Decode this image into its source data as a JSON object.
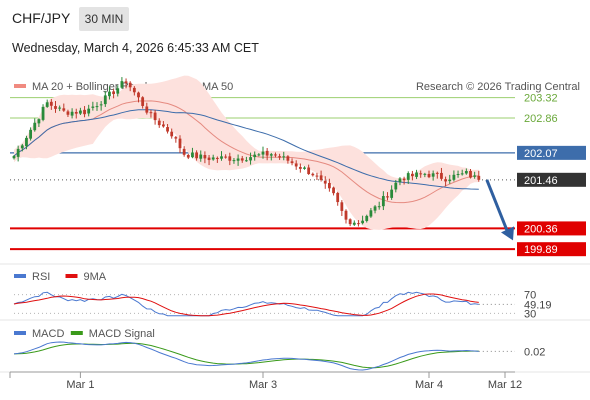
{
  "header": {
    "symbol": "CHF/JPY",
    "timeframe": "30 MIN",
    "datetime": "Wednesday, March 4, 2026 6:45:33 AM CET",
    "credit": "Research © 2026 Trading Central"
  },
  "legend_price": [
    {
      "label": "MA 20 + Bollinger Bands",
      "color": "#f08a80"
    },
    {
      "label": "MA 50",
      "color": "#3d6dab"
    }
  ],
  "legend_rsi": [
    {
      "label": "RSI",
      "color": "#4a78d0"
    },
    {
      "label": "9MA",
      "color": "#e01010"
    }
  ],
  "legend_macd": [
    {
      "label": "MACD",
      "color": "#4a78d0"
    },
    {
      "label": "MACD Signal",
      "color": "#3a9a1a"
    }
  ],
  "colors": {
    "up": "#2a8a3a",
    "down": "#c0392b",
    "band": "#fde1dd",
    "ma50": "#3d6dab",
    "ma20": "#e58a80",
    "resistance": "#9bcf6f",
    "support": "#e00000",
    "pivot": "#3d6dab",
    "arrow": "#2f5fa0"
  },
  "chart_data": {
    "type": "candlestick",
    "price_range": [
      199.6,
      203.9
    ],
    "levels": [
      {
        "value": 203.32,
        "label": "203.32",
        "kind": "resistance"
      },
      {
        "value": 202.86,
        "label": "202.86",
        "kind": "resistance"
      },
      {
        "value": 202.07,
        "label": "202.07",
        "kind": "pivot"
      },
      {
        "value": 201.46,
        "label": "201.46",
        "kind": "last"
      },
      {
        "value": 200.36,
        "label": "200.36",
        "kind": "support"
      },
      {
        "value": 199.89,
        "label": "199.89",
        "kind": "support"
      }
    ],
    "forecast": {
      "from": 201.46,
      "to": 200.36
    },
    "x_ticks": [
      "Mar 1",
      "Mar 3",
      "Mar 4",
      "Mar 12"
    ],
    "x_tick_index": [
      16,
      60,
      100,
      116
    ],
    "n_bars": 113,
    "close_anchors": [
      [
        0,
        202.0
      ],
      [
        4,
        202.6
      ],
      [
        8,
        203.2
      ],
      [
        12,
        203.0
      ],
      [
        17,
        203.0
      ],
      [
        22,
        203.3
      ],
      [
        27,
        203.7
      ],
      [
        33,
        202.9
      ],
      [
        38,
        202.5
      ],
      [
        41,
        202.05
      ],
      [
        46,
        201.95
      ],
      [
        54,
        201.95
      ],
      [
        62,
        202.05
      ],
      [
        66,
        201.9
      ],
      [
        72,
        201.6
      ],
      [
        77,
        201.1
      ],
      [
        80,
        200.55
      ],
      [
        83,
        200.5
      ],
      [
        88,
        200.9
      ],
      [
        93,
        201.5
      ],
      [
        99,
        201.6
      ],
      [
        104,
        201.5
      ],
      [
        109,
        201.6
      ],
      [
        112,
        201.46
      ]
    ],
    "rsi": {
      "value": 49.19,
      "label": "49.19",
      "ticks": [
        {
          "v": 70,
          "label": "70"
        },
        {
          "v": 30,
          "label": "30"
        }
      ],
      "range": [
        20,
        80
      ]
    },
    "macd": {
      "value": 0.02,
      "label": "0.02"
    }
  },
  "x_axis": [
    "Mar 1",
    "Mar 3",
    "Mar 4",
    "Mar 12"
  ]
}
